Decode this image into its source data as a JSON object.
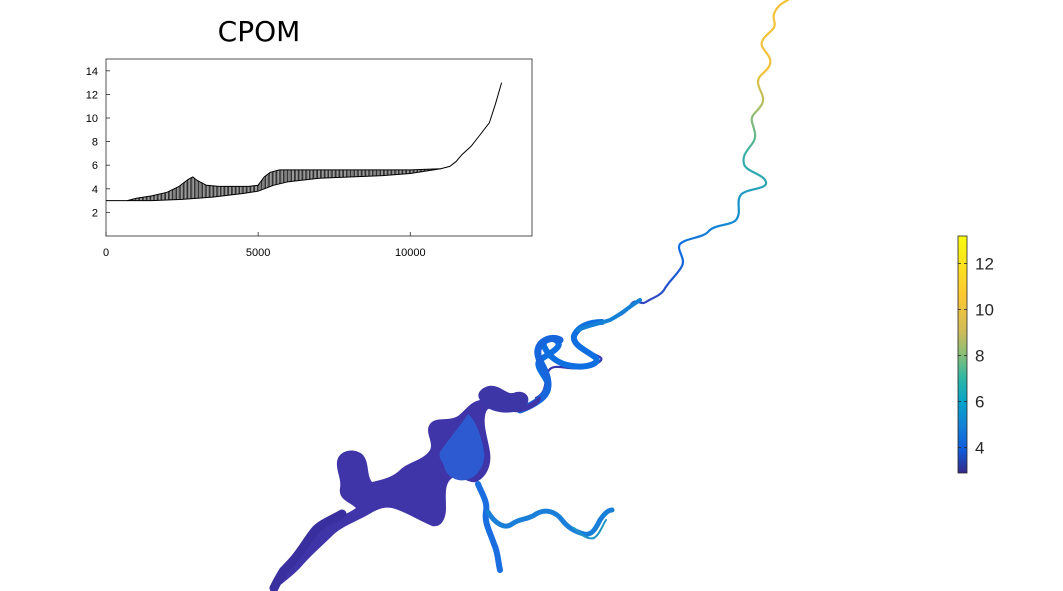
{
  "figure": {
    "background": "#ffffff"
  },
  "chart_data": [
    {
      "type": "line",
      "title": "CPOM",
      "xlabel": "",
      "ylabel": "",
      "xlim": [
        0,
        14000
      ],
      "ylim": [
        0,
        15
      ],
      "xticks": [
        0,
        5000,
        10000
      ],
      "yticks": [
        2,
        4,
        6,
        8,
        10,
        12,
        14
      ],
      "grid": false,
      "line_color": "#000000",
      "series": [
        {
          "x": [
            0,
            700,
            1000,
            1500,
            2000,
            2400,
            2700,
            2850,
            3000,
            3300,
            3700,
            4200,
            4700,
            5000,
            5200,
            5400,
            5700,
            6000,
            7000,
            8000,
            9000,
            10000,
            11000,
            11300,
            11500,
            11700,
            12000,
            12300,
            12600,
            12800,
            13000
          ],
          "y": [
            3.0,
            3.0,
            3.2,
            3.4,
            3.7,
            4.2,
            4.8,
            5.0,
            4.7,
            4.3,
            4.2,
            4.2,
            4.2,
            4.3,
            5.0,
            5.4,
            5.6,
            5.6,
            5.6,
            5.6,
            5.6,
            5.6,
            5.7,
            5.9,
            6.3,
            6.9,
            7.6,
            8.6,
            9.6,
            11.2,
            13.0
          ]
        },
        {
          "x": [
            700,
            1500,
            2500,
            3500,
            4500,
            5000,
            5500,
            6000,
            7000,
            8000,
            9000,
            10000,
            10500,
            11000
          ],
          "y": [
            3.0,
            3.0,
            3.1,
            3.3,
            3.6,
            3.8,
            4.3,
            4.6,
            4.9,
            5.0,
            5.1,
            5.3,
            5.5,
            5.7
          ]
        }
      ]
    },
    {
      "type": "heatmap",
      "colormap": "parula",
      "color_limits": [
        2.9,
        13.2
      ],
      "colorbar_ticks": [
        4,
        6,
        8,
        10,
        12
      ],
      "colorbar_location": "right"
    }
  ]
}
